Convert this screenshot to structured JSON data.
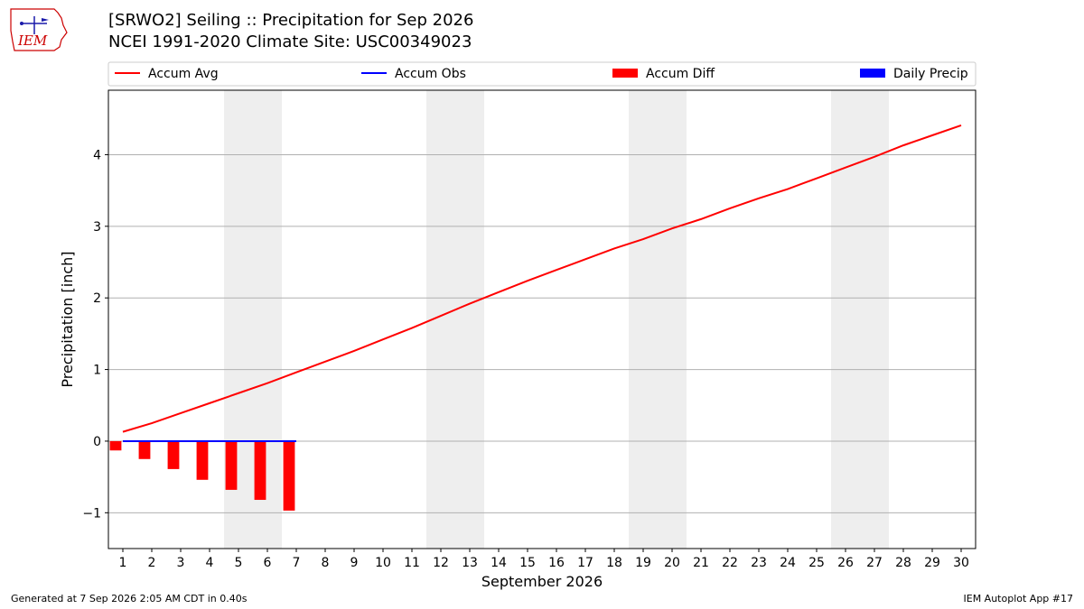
{
  "logo": {
    "text": "IEM"
  },
  "header": {
    "title_line1": "[SRWO2] Seiling :: Precipitation for Sep 2026",
    "title_line2": "NCEI 1991-2020 Climate Site: USC00349023"
  },
  "footer": {
    "left": "Generated at 7 Sep 2026 2:05 AM CDT in 0.40s",
    "right": "IEM Autoplot App #17"
  },
  "colors": {
    "accum_avg": "#ff0000",
    "accum_obs": "#0000ff",
    "accum_diff": "#ff0000",
    "daily_precip": "#0000ff",
    "weekend_shade": "#eeeeee",
    "grid": "#b0b0b0"
  },
  "chart_data": {
    "type": "bar",
    "xlabel": "September 2026",
    "ylabel": "Precipitation [inch]",
    "xlim": [
      0.5,
      30.5
    ],
    "ylim": [
      -1.5,
      4.9
    ],
    "yticks": [
      -1,
      0,
      1,
      2,
      3,
      4
    ],
    "ytick_labels": [
      "−1",
      "0",
      "1",
      "2",
      "3",
      "4"
    ],
    "x": [
      1,
      2,
      3,
      4,
      5,
      6,
      7,
      8,
      9,
      10,
      11,
      12,
      13,
      14,
      15,
      16,
      17,
      18,
      19,
      20,
      21,
      22,
      23,
      24,
      25,
      26,
      27,
      28,
      29,
      30
    ],
    "grid": "horizontal",
    "legend_position": "top",
    "weekend_spans": [
      [
        4.5,
        6.5
      ],
      [
        11.5,
        13.5
      ],
      [
        18.5,
        20.5
      ],
      [
        25.5,
        27.5
      ]
    ],
    "series": [
      {
        "name": "Accum Avg",
        "kind": "line",
        "x": [
          1,
          2,
          3,
          4,
          5,
          6,
          7,
          8,
          9,
          10,
          11,
          12,
          13,
          14,
          15,
          16,
          17,
          18,
          19,
          20,
          21,
          22,
          23,
          24,
          25,
          26,
          27,
          28,
          29,
          30
        ],
        "values": [
          0.13,
          0.25,
          0.39,
          0.53,
          0.67,
          0.81,
          0.96,
          1.11,
          1.26,
          1.42,
          1.58,
          1.75,
          1.92,
          2.08,
          2.24,
          2.39,
          2.54,
          2.69,
          2.82,
          2.97,
          3.1,
          3.25,
          3.39,
          3.52,
          3.67,
          3.82,
          3.97,
          4.13,
          4.27,
          4.41
        ]
      },
      {
        "name": "Accum Obs",
        "kind": "line",
        "x": [
          1,
          2,
          3,
          4,
          5,
          6,
          7
        ],
        "values": [
          0,
          0,
          0,
          0,
          0,
          0,
          0
        ]
      },
      {
        "name": "Accum Diff",
        "kind": "bar",
        "x": [
          1,
          2,
          3,
          4,
          5,
          6,
          7
        ],
        "values": [
          -0.13,
          -0.25,
          -0.39,
          -0.54,
          -0.68,
          -0.82,
          -0.97
        ]
      },
      {
        "name": "Daily Precip",
        "kind": "bar",
        "x": [
          1,
          2,
          3,
          4,
          5,
          6,
          7
        ],
        "values": [
          0,
          0,
          0,
          0,
          0,
          0,
          0
        ]
      }
    ]
  }
}
